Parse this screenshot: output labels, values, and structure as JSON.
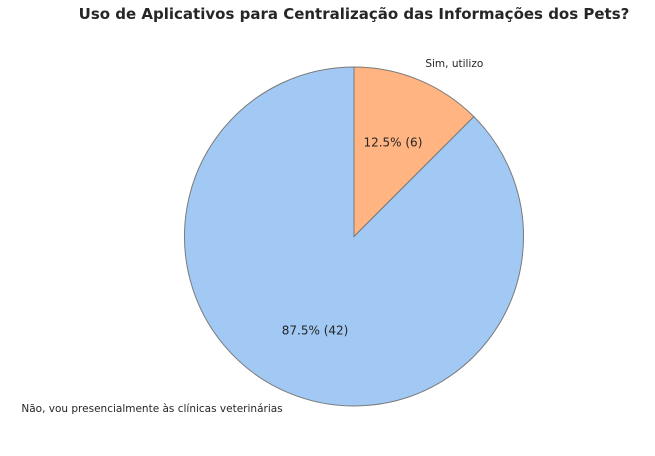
{
  "chart_data": {
    "type": "pie",
    "title": "Uso de Aplicativos para Centralização das Informações dos Pets?",
    "slices": [
      {
        "label": "Sim, utilizo",
        "value": 6,
        "percent_label": "12.5% (6)",
        "color": "#ffb482"
      },
      {
        "label": "Não, vou presencialmente às clínicas veterinárias",
        "value": 42,
        "percent_label": "87.5% (42)",
        "color": "#a1c9f4"
      }
    ],
    "start_angle": 90,
    "direction": "clockwise",
    "edge_color": "#7a7a7a"
  }
}
